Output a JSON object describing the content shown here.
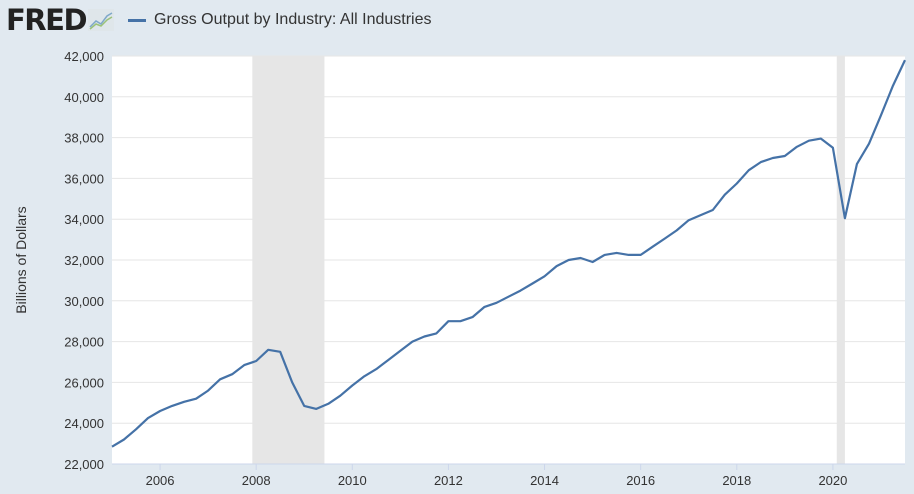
{
  "header": {
    "logo": "FRED",
    "series_title": "Gross Output by Industry: All Industries"
  },
  "colors": {
    "line": "#4572a7",
    "recession": "#e6e6e6",
    "grid": "#e6e6e6",
    "background": "#e1e9f0"
  },
  "chart_data": {
    "type": "line",
    "title": "Gross Output by Industry: All Industries",
    "ylabel": "Billions of Dollars",
    "xlabel": "",
    "xlim": [
      2005.0,
      2021.5
    ],
    "ylim": [
      22000,
      42000
    ],
    "yticks": [
      22000,
      24000,
      26000,
      28000,
      30000,
      32000,
      34000,
      36000,
      38000,
      40000,
      42000
    ],
    "ytick_labels": [
      "22,000",
      "24,000",
      "26,000",
      "28,000",
      "30,000",
      "32,000",
      "34,000",
      "36,000",
      "38,000",
      "40,000",
      "42,000"
    ],
    "xticks": [
      2006,
      2008,
      2010,
      2012,
      2014,
      2016,
      2018,
      2020
    ],
    "xtick_labels": [
      "2006",
      "2008",
      "2010",
      "2012",
      "2014",
      "2016",
      "2018",
      "2020"
    ],
    "grid": true,
    "legend": "top-left",
    "recessions": [
      [
        2007.92,
        2009.42
      ],
      [
        2020.08,
        2020.25
      ]
    ],
    "x_start": 2005.0,
    "x_step": 0.25,
    "series": [
      {
        "name": "Gross Output by Industry: All Industries",
        "values": [
          22850,
          23200,
          23700,
          24250,
          24600,
          24850,
          25050,
          25200,
          25600,
          26150,
          26400,
          26850,
          27050,
          27600,
          27500,
          26000,
          24850,
          24700,
          24950,
          25350,
          25850,
          26300,
          26650,
          27100,
          27550,
          28000,
          28250,
          28400,
          29000,
          29000,
          29200,
          29700,
          29900,
          30200,
          30500,
          30850,
          31200,
          31700,
          32000,
          32100,
          31900,
          32250,
          32350,
          32250,
          32250,
          32650,
          33050,
          33450,
          33950,
          34200,
          34450,
          35200,
          35750,
          36400,
          36800,
          37000,
          37100,
          37550,
          37850,
          37950,
          37500,
          34050,
          36700,
          37700,
          39100,
          40550,
          41800
        ]
      }
    ]
  }
}
